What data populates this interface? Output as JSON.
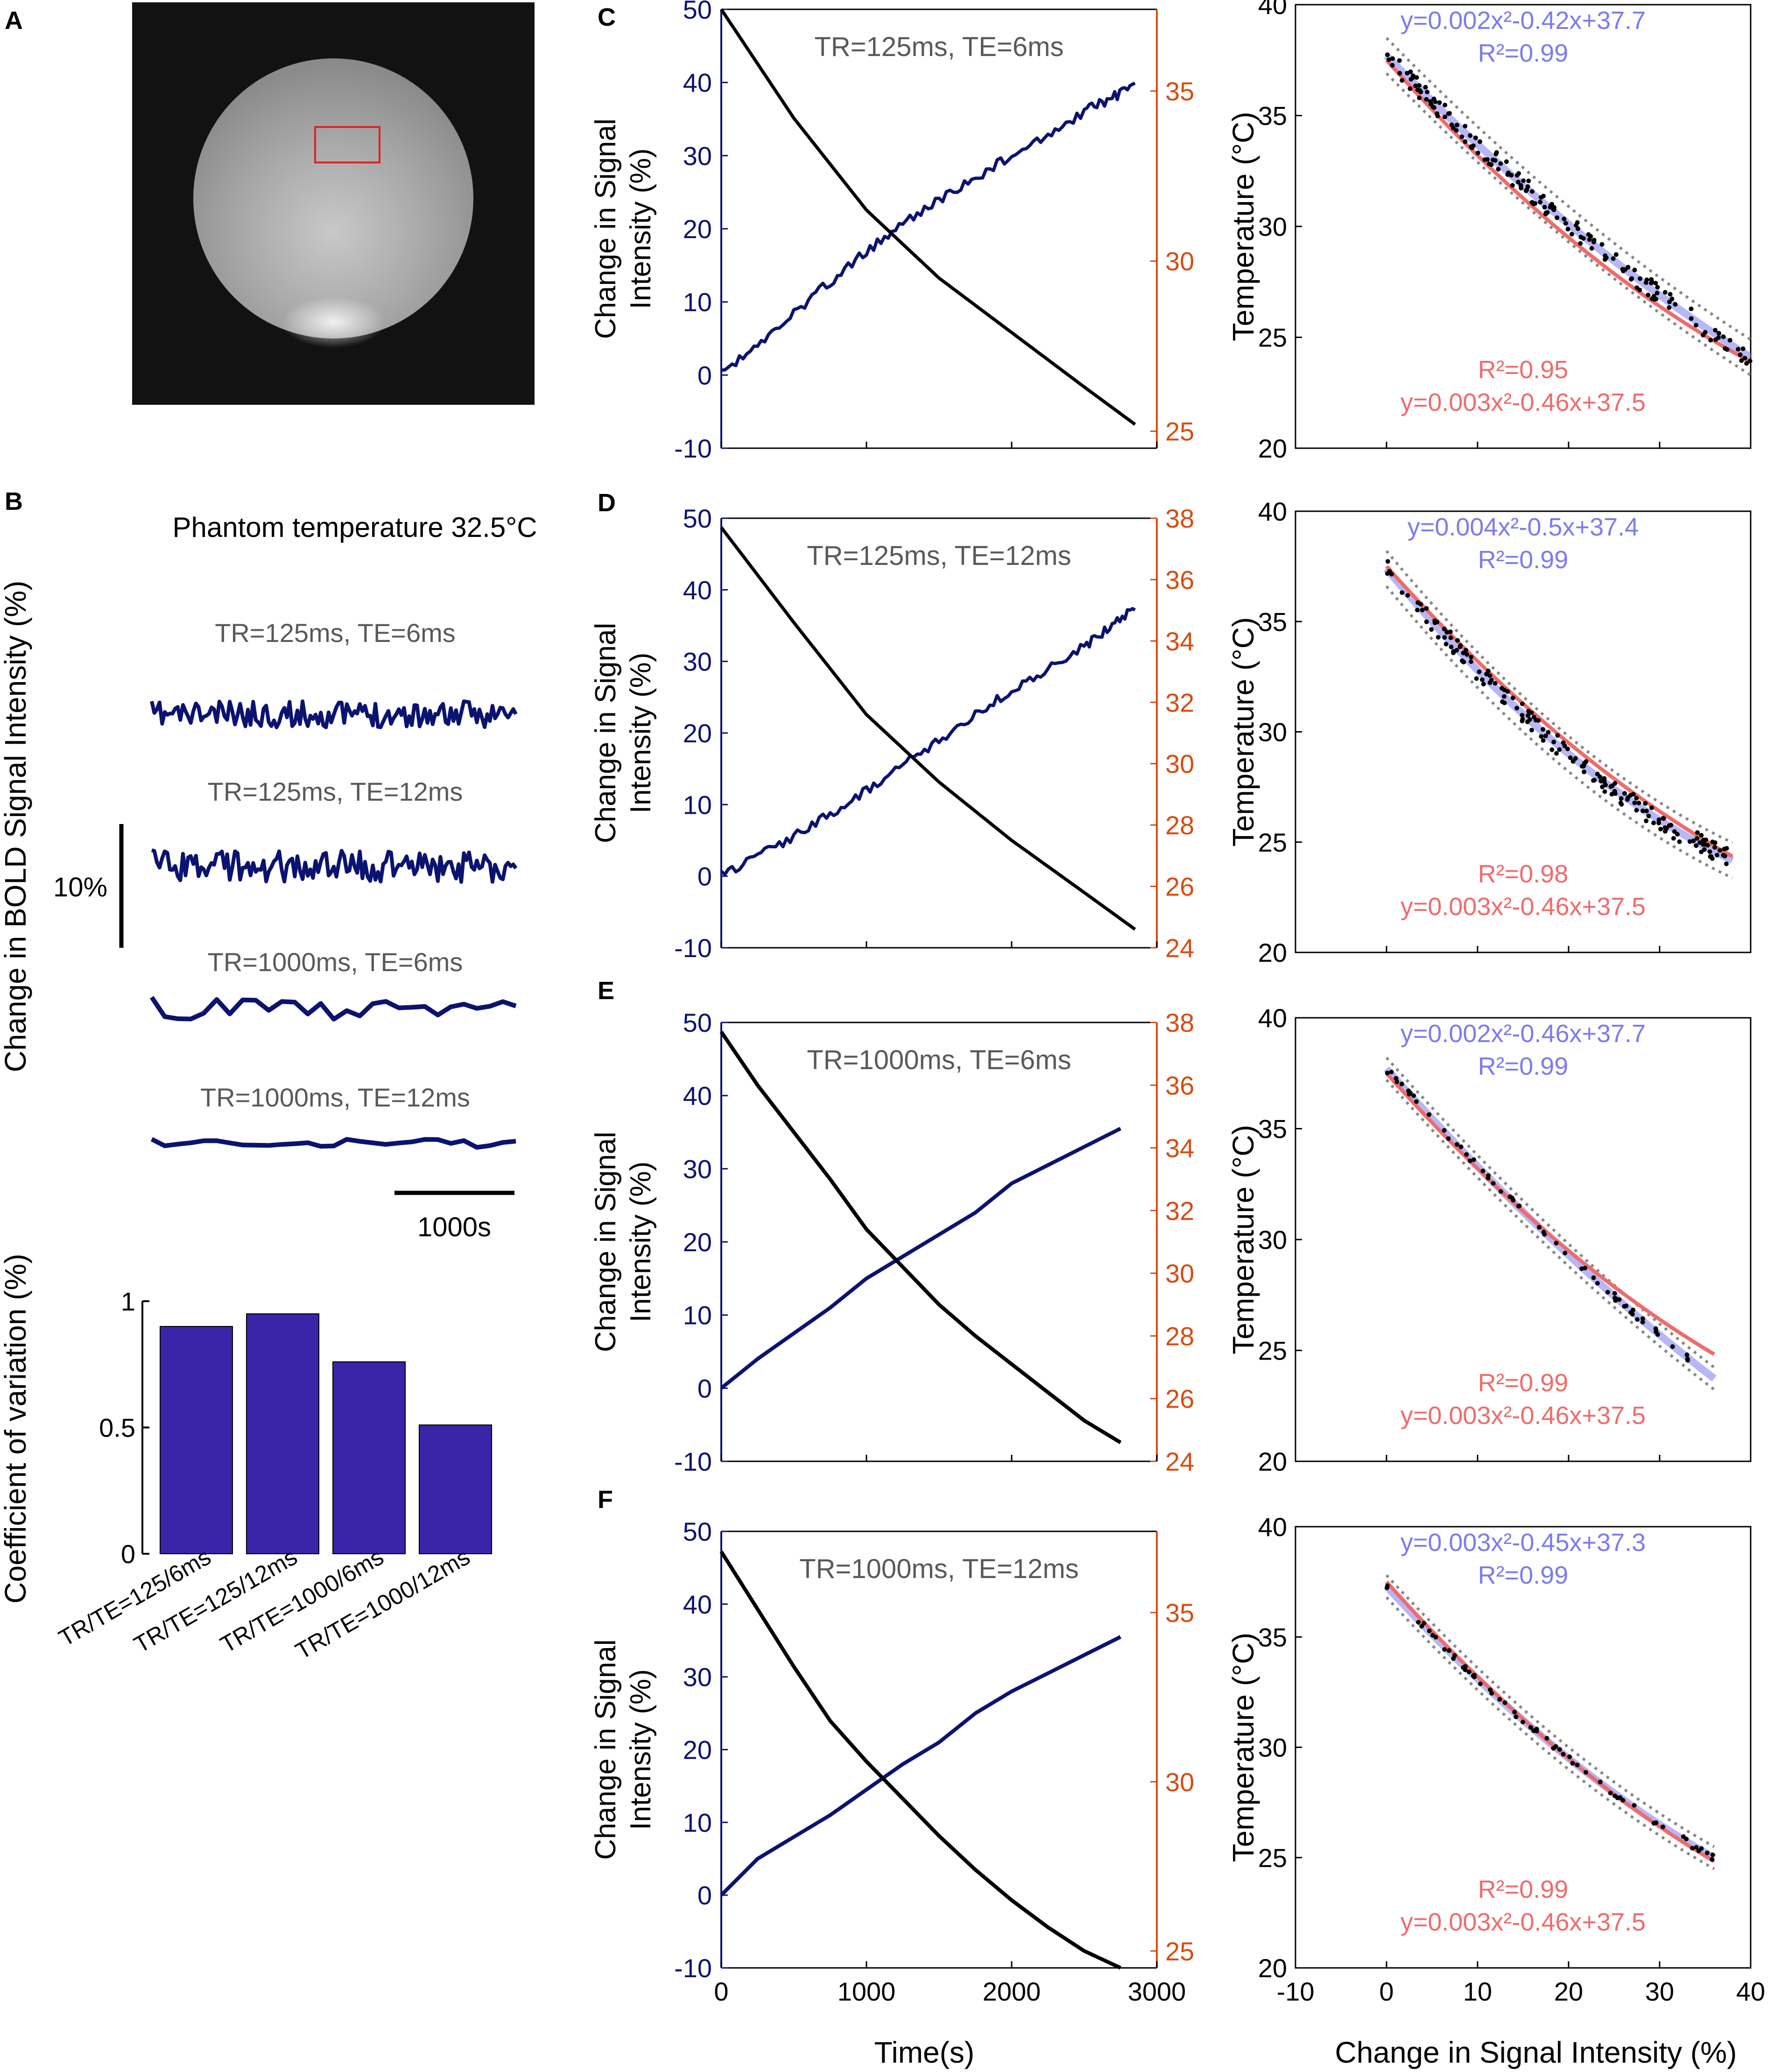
{
  "panels": {
    "a": "A",
    "b": "B",
    "c": "C",
    "d": "D",
    "e": "E",
    "f": "F"
  },
  "colors": {
    "navy": "#0b1370",
    "orange": "#d84c10",
    "blue_fit": "#7b7bf0",
    "red_fit": "#f06b6b",
    "bar": "#3a24a8",
    "gray": "#595959",
    "phantom_roi": "#e02020"
  },
  "panel_b": {
    "title": "Phantom temperature 32.5°C",
    "ylabel": "Change in BOLD Signal Intensity (%)",
    "scale_y": "10%",
    "scale_x": "1000s",
    "traces": [
      "TR=125ms, TE=6ms",
      "TR=125ms, TE=12ms",
      "TR=1000ms, TE=6ms",
      "TR=1000ms, TE=12ms"
    ]
  },
  "chart_data": [
    {
      "id": "cv-bars",
      "type": "bar",
      "ylabel": "Coefficient of variation (%)",
      "categories": [
        "TR/TE=125/6ms",
        "TR/TE=125/12ms",
        "TR/TE=1000/6ms",
        "TR/TE=1000/12ms"
      ],
      "values": [
        0.9,
        0.95,
        0.76,
        0.51
      ],
      "ylim": [
        0,
        1
      ],
      "yticks": [
        "0",
        "0.5",
        "1"
      ]
    },
    {
      "id": "time-courses",
      "type": "line",
      "xlabel": "Time(s)",
      "ylabel": [
        "Change in Signal",
        "Intensity (%)"
      ],
      "xticks": [
        "0",
        "1000",
        "2000",
        "3000"
      ],
      "xlim": [
        0,
        3000
      ],
      "left_ylim": [
        -10,
        50
      ],
      "left_yticks": [
        "-10",
        "0",
        "10",
        "20",
        "30",
        "40",
        "50"
      ],
      "rows": [
        {
          "panel": "C",
          "title": "TR=125ms, TE=6ms",
          "right_ylim": [
            24.5,
            37.4
          ],
          "right_yticks": [
            "25",
            "30",
            "35"
          ],
          "series": [
            {
              "name": "Change in Signal Intensity (%)",
              "axis": "left",
              "x": [
                0,
                500,
                1000,
                1500,
                2000,
                2500,
                2850
              ],
              "y": [
                0,
                8.5,
                17,
                24,
                30,
                36,
                39.5
              ]
            },
            {
              "name": "Temperature (°C)",
              "axis": "right",
              "x": [
                0,
                500,
                1000,
                1500,
                2000,
                2500,
                2850
              ],
              "y": [
                37.4,
                34.2,
                31.5,
                29.5,
                27.9,
                26.3,
                25.2
              ]
            }
          ]
        },
        {
          "panel": "D",
          "title": "TR=125ms, TE=12ms",
          "right_ylim": [
            24,
            38
          ],
          "right_yticks": [
            "24",
            "26",
            "28",
            "30",
            "32",
            "34",
            "36",
            "38"
          ],
          "series": [
            {
              "name": "Change in Signal Intensity (%)",
              "axis": "left",
              "x": [
                0,
                500,
                1000,
                1500,
                2000,
                2500,
                2850
              ],
              "y": [
                0,
                5.5,
                12,
                19,
                26,
                32,
                37.5
              ]
            },
            {
              "name": "Temperature (°C)",
              "axis": "right",
              "x": [
                0,
                500,
                1000,
                1500,
                2000,
                2500,
                2850
              ],
              "y": [
                37.7,
                34.6,
                31.6,
                29.4,
                27.5,
                25.8,
                24.6
              ]
            }
          ]
        },
        {
          "panel": "E",
          "title": "TR=1000ms, TE=6ms",
          "right_ylim": [
            24,
            38
          ],
          "right_yticks": [
            "24",
            "26",
            "28",
            "30",
            "32",
            "34",
            "36",
            "38"
          ],
          "series": [
            {
              "name": "Change in Signal Intensity (%)",
              "axis": "left",
              "x": [
                0,
                250,
                500,
                750,
                1000,
                1250,
                1500,
                1750,
                2000,
                2250,
                2500,
                2750
              ],
              "y": [
                0,
                4,
                7.5,
                11,
                15,
                18,
                21,
                24,
                28,
                30.5,
                33,
                35.5
              ]
            },
            {
              "name": "Temperature (°C)",
              "axis": "right",
              "x": [
                0,
                250,
                500,
                750,
                1000,
                1250,
                1500,
                1750,
                2000,
                2250,
                2500,
                2750
              ],
              "y": [
                37.7,
                36,
                34.5,
                33,
                31.4,
                30.2,
                29,
                28,
                27.1,
                26.2,
                25.3,
                24.6
              ]
            }
          ]
        },
        {
          "panel": "F",
          "title": "TR=1000ms, TE=12ms",
          "right_ylim": [
            24.5,
            37.4
          ],
          "right_yticks": [
            "25",
            "30",
            "35"
          ],
          "series": [
            {
              "name": "Change in Signal Intensity (%)",
              "axis": "left",
              "x": [
                0,
                250,
                500,
                750,
                1000,
                1250,
                1500,
                1750,
                2000,
                2250,
                2500,
                2750
              ],
              "y": [
                0,
                5,
                8,
                11,
                14.5,
                18,
                21,
                25,
                28,
                30.5,
                33,
                35.5
              ]
            },
            {
              "name": "Temperature (°C)",
              "axis": "right",
              "x": [
                0,
                250,
                500,
                750,
                1000,
                1250,
                1500,
                1750,
                2000,
                2250,
                2500,
                2750
              ],
              "y": [
                36.8,
                35.1,
                33.4,
                31.8,
                30.6,
                29.5,
                28.4,
                27.4,
                26.5,
                25.7,
                25,
                24.5
              ]
            }
          ]
        }
      ]
    },
    {
      "id": "calibration",
      "type": "scatter",
      "xlabel": "Change in Signal Intensity (%)",
      "ylabel": "Temperature (°C)",
      "xticks": [
        "-10",
        "0",
        "10",
        "20",
        "30",
        "40"
      ],
      "yticks": [
        "20",
        "25",
        "30",
        "35",
        "40"
      ],
      "xlim": [
        -10,
        40
      ],
      "ylim": [
        20,
        40
      ],
      "reference_fit": {
        "a": 0.003,
        "b": -0.46,
        "c": 37.5
      },
      "rows": [
        {
          "panel": "C",
          "xmax": 40,
          "fit": {
            "a": 0.002,
            "b": -0.42,
            "c": 37.7
          },
          "band": 0.8,
          "fit_r2": "R²=0.99",
          "ref_r2": "R²=0.95",
          "fit_eq": "y=0.002x²-0.42x+37.7",
          "ref_eq": "y=0.003x²-0.46x+37.5"
        },
        {
          "panel": "D",
          "xmax": 38,
          "fit": {
            "a": 0.004,
            "b": -0.5,
            "c": 37.4
          },
          "band": 0.8,
          "fit_r2": "R²=0.99",
          "ref_r2": "R²=0.98",
          "fit_eq": "y=0.004x²-0.5x+37.4",
          "ref_eq": "y=0.003x²-0.46x+37.5"
        },
        {
          "panel": "E",
          "xmax": 36,
          "fit": {
            "a": 0.002,
            "b": -0.46,
            "c": 37.7
          },
          "band": 0.5,
          "fit_r2": "R²=0.99",
          "ref_r2": "R²=0.99",
          "fit_eq": "y=0.002x²-0.46x+37.7",
          "ref_eq": "y=0.003x²-0.46x+37.5"
        },
        {
          "panel": "F",
          "xmax": 36,
          "fit": {
            "a": 0.003,
            "b": -0.45,
            "c": 37.3
          },
          "band": 0.5,
          "fit_r2": "R²=0.99",
          "ref_r2": "R²=0.99",
          "fit_eq": "y=0.003x²-0.45x+37.3",
          "ref_eq": "y=0.003x²-0.46x+37.5"
        }
      ]
    }
  ]
}
